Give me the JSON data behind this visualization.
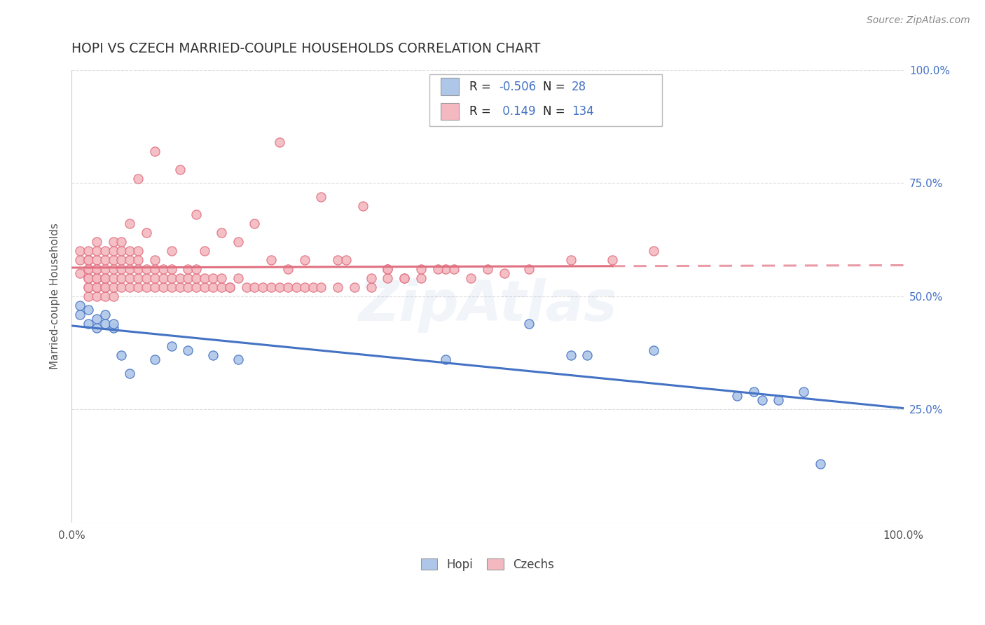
{
  "title": "HOPI VS CZECH MARRIED-COUPLE HOUSEHOLDS CORRELATION CHART",
  "source_text": "Source: ZipAtlas.com",
  "ylabel": "Married-couple Households",
  "xlim": [
    0.0,
    1.0
  ],
  "ylim": [
    0.0,
    1.0
  ],
  "hopi_R": -0.506,
  "hopi_N": 28,
  "czech_R": 0.149,
  "czech_N": 134,
  "hopi_color": "#aec6e8",
  "czech_color": "#f4b8c0",
  "hopi_edge_color": "#4472c4",
  "czech_edge_color": "#e07080",
  "hopi_line_color": "#4472c4",
  "czech_line_color": "#e07080",
  "legend_blue_color": "#4472c4",
  "tick_blue_color": "#4472c4",
  "watermark_color": "#4472c4",
  "grid_color": "#dddddd",
  "title_color": "#333333",
  "source_color": "#888888",
  "ylabel_color": "#555555",
  "hopi_x": [
    0.01,
    0.01,
    0.02,
    0.02,
    0.03,
    0.03,
    0.04,
    0.04,
    0.05,
    0.05,
    0.06,
    0.07,
    0.1,
    0.12,
    0.14,
    0.17,
    0.2,
    0.45,
    0.55,
    0.6,
    0.62,
    0.7,
    0.8,
    0.82,
    0.83,
    0.85,
    0.88,
    0.9
  ],
  "hopi_y": [
    0.46,
    0.48,
    0.44,
    0.47,
    0.43,
    0.45,
    0.44,
    0.46,
    0.43,
    0.44,
    0.37,
    0.33,
    0.36,
    0.39,
    0.38,
    0.37,
    0.36,
    0.36,
    0.44,
    0.37,
    0.37,
    0.38,
    0.28,
    0.29,
    0.27,
    0.27,
    0.29,
    0.13
  ],
  "czech_x": [
    0.01,
    0.01,
    0.01,
    0.02,
    0.02,
    0.02,
    0.02,
    0.02,
    0.02,
    0.02,
    0.02,
    0.02,
    0.02,
    0.03,
    0.03,
    0.03,
    0.03,
    0.03,
    0.03,
    0.03,
    0.03,
    0.03,
    0.03,
    0.04,
    0.04,
    0.04,
    0.04,
    0.04,
    0.04,
    0.04,
    0.04,
    0.05,
    0.05,
    0.05,
    0.05,
    0.05,
    0.05,
    0.05,
    0.06,
    0.06,
    0.06,
    0.06,
    0.06,
    0.06,
    0.07,
    0.07,
    0.07,
    0.07,
    0.07,
    0.08,
    0.08,
    0.08,
    0.08,
    0.08,
    0.09,
    0.09,
    0.09,
    0.1,
    0.1,
    0.1,
    0.1,
    0.11,
    0.11,
    0.11,
    0.12,
    0.12,
    0.12,
    0.13,
    0.13,
    0.14,
    0.14,
    0.14,
    0.15,
    0.15,
    0.15,
    0.16,
    0.16,
    0.17,
    0.17,
    0.18,
    0.18,
    0.19,
    0.2,
    0.21,
    0.22,
    0.23,
    0.24,
    0.25,
    0.26,
    0.27,
    0.28,
    0.29,
    0.3,
    0.32,
    0.34,
    0.36,
    0.38,
    0.4,
    0.42,
    0.25,
    0.1,
    0.13,
    0.08,
    0.3,
    0.35,
    0.15,
    0.07,
    0.09,
    0.2,
    0.18,
    0.22,
    0.16,
    0.28,
    0.32,
    0.12,
    0.38,
    0.42,
    0.26,
    0.24,
    0.33,
    0.19,
    0.45,
    0.5,
    0.55,
    0.4,
    0.48,
    0.52,
    0.44,
    0.46,
    0.36,
    0.38,
    0.6,
    0.65,
    0.7
  ],
  "czech_y": [
    0.55,
    0.58,
    0.6,
    0.5,
    0.52,
    0.54,
    0.56,
    0.58,
    0.6,
    0.52,
    0.54,
    0.56,
    0.58,
    0.5,
    0.52,
    0.54,
    0.56,
    0.58,
    0.6,
    0.62,
    0.52,
    0.54,
    0.56,
    0.5,
    0.52,
    0.54,
    0.56,
    0.58,
    0.6,
    0.52,
    0.54,
    0.5,
    0.52,
    0.54,
    0.56,
    0.58,
    0.6,
    0.62,
    0.52,
    0.54,
    0.56,
    0.58,
    0.6,
    0.62,
    0.52,
    0.54,
    0.56,
    0.58,
    0.6,
    0.52,
    0.54,
    0.56,
    0.58,
    0.6,
    0.52,
    0.54,
    0.56,
    0.52,
    0.54,
    0.56,
    0.58,
    0.52,
    0.54,
    0.56,
    0.52,
    0.54,
    0.56,
    0.52,
    0.54,
    0.52,
    0.54,
    0.56,
    0.52,
    0.54,
    0.56,
    0.52,
    0.54,
    0.52,
    0.54,
    0.52,
    0.54,
    0.52,
    0.54,
    0.52,
    0.52,
    0.52,
    0.52,
    0.52,
    0.52,
    0.52,
    0.52,
    0.52,
    0.52,
    0.52,
    0.52,
    0.52,
    0.54,
    0.54,
    0.54,
    0.84,
    0.82,
    0.78,
    0.76,
    0.72,
    0.7,
    0.68,
    0.66,
    0.64,
    0.62,
    0.64,
    0.66,
    0.6,
    0.58,
    0.58,
    0.6,
    0.56,
    0.56,
    0.56,
    0.58,
    0.58,
    0.52,
    0.56,
    0.56,
    0.56,
    0.54,
    0.54,
    0.55,
    0.56,
    0.56,
    0.54,
    0.56,
    0.58,
    0.58,
    0.6
  ]
}
